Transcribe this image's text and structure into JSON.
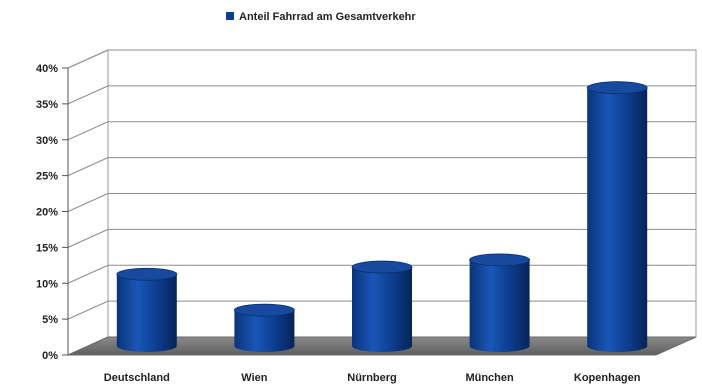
{
  "chart_data": {
    "type": "bar",
    "categories": [
      "Deutschland",
      "Wien",
      "Nürnberg",
      "München",
      "Kopenhagen"
    ],
    "series": [
      {
        "name": "Anteil Fahrrad am Gesamtverkehr",
        "values": [
          10,
          5,
          11,
          12,
          36
        ],
        "color": "#0a3d8f"
      }
    ],
    "y_ticks": [
      "0%",
      "5%",
      "10%",
      "15%",
      "20%",
      "25%",
      "30%",
      "35%",
      "40%"
    ],
    "ylim": [
      0,
      40
    ],
    "legend_position": "top-center",
    "grid": true
  }
}
